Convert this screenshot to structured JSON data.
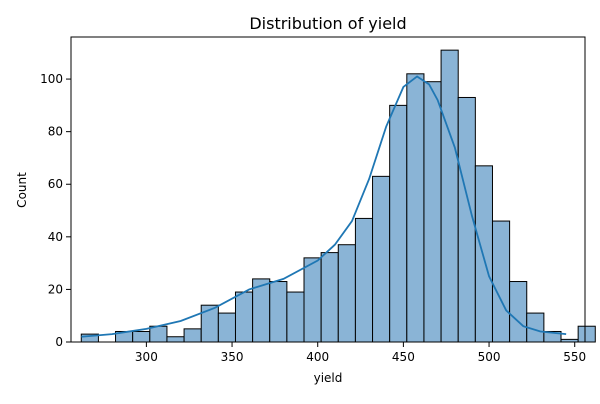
{
  "chart_data": {
    "type": "bar",
    "title": "Distribution of yield",
    "xlabel": "yield",
    "ylabel": "Count",
    "xlim": [
      256,
      556
    ],
    "ylim": [
      0,
      116
    ],
    "bin_start": 262,
    "bin_width": 10,
    "x_ticks": [
      300,
      350,
      400,
      450,
      500,
      550
    ],
    "y_ticks": [
      0,
      20,
      40,
      60,
      80,
      100
    ],
    "values": [
      3,
      0,
      4,
      4,
      6,
      2,
      5,
      14,
      11,
      19,
      24,
      23,
      19,
      32,
      34,
      37,
      47,
      63,
      90,
      102,
      99,
      111,
      93,
      67,
      46,
      23,
      11,
      4,
      1,
      6
    ],
    "kde_line": {
      "x": [
        262,
        280,
        300,
        320,
        340,
        360,
        380,
        400,
        410,
        420,
        430,
        440,
        450,
        458,
        465,
        470,
        480,
        490,
        500,
        510,
        520,
        530,
        545
      ],
      "y": [
        2,
        3,
        5,
        8,
        13,
        20,
        24,
        31,
        37,
        46,
        62,
        82,
        97,
        101,
        98,
        92,
        74,
        48,
        25,
        12,
        6,
        4,
        3
      ]
    },
    "bar_color": "#8ab4d6",
    "bar_edge_color": "#000000",
    "line_color": "#1f77b4",
    "grid": false
  }
}
